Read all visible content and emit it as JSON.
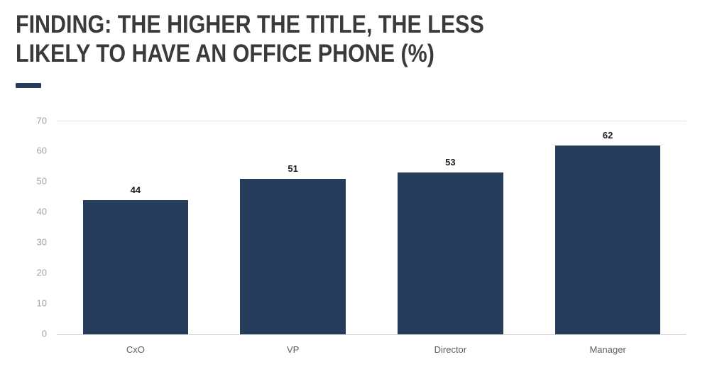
{
  "header": {
    "title": "FINDING: THE HIGHER THE TITLE, THE LESS LIKELY TO HAVE AN OFFICE PHONE (%)"
  },
  "colors": {
    "bar": "#253d5b",
    "accent": "#253d5b",
    "title_text": "#3a3a3a",
    "axis_label": "#a3a3a3",
    "category_label": "#5f5f5f",
    "value_label": "#1e1e1e",
    "gridline": "#e3e3e3"
  },
  "chart_data": {
    "type": "bar",
    "title": "FINDING: THE HIGHER THE TITLE, THE LESS LIKELY TO HAVE AN OFFICE PHONE (%)",
    "categories": [
      "CxO",
      "VP",
      "Director",
      "Manager"
    ],
    "values": [
      44,
      51,
      53,
      62
    ],
    "xlabel": "",
    "ylabel": "",
    "ylim": [
      0,
      70
    ],
    "yticks": [
      0,
      10,
      20,
      30,
      40,
      50,
      60,
      70
    ],
    "grid": "top-line-and-baseline-only",
    "legend": "none",
    "value_labels": "above-bars"
  }
}
